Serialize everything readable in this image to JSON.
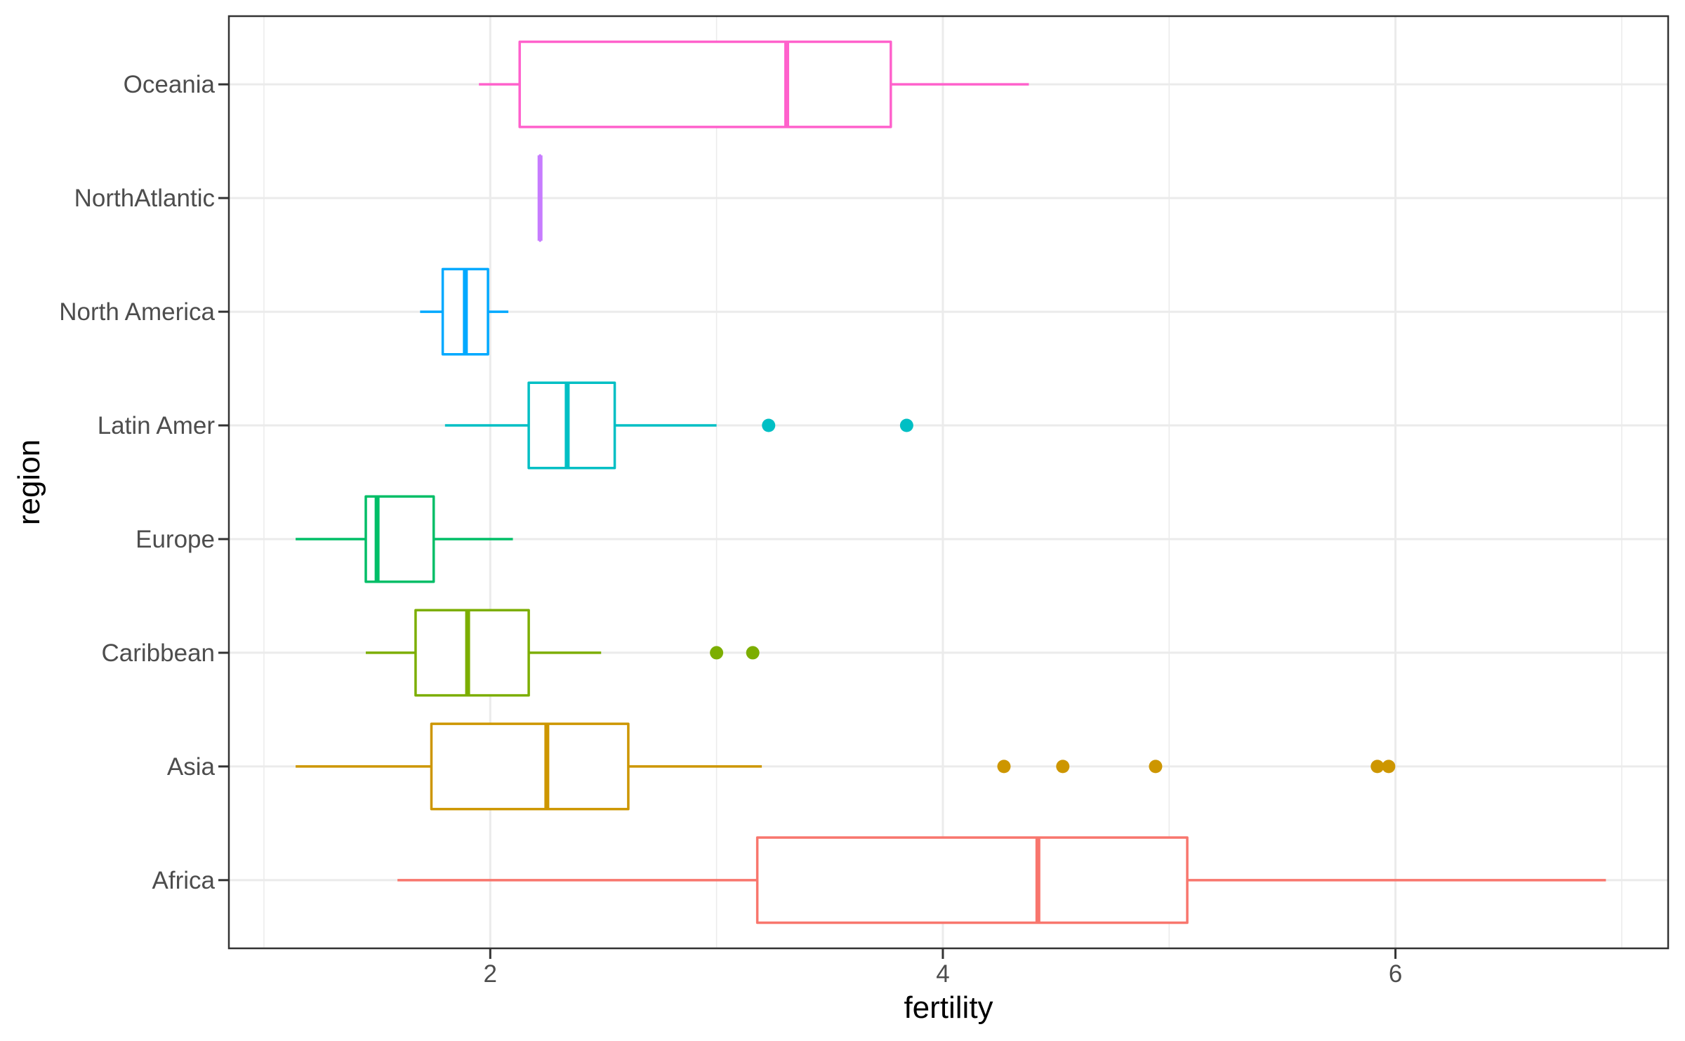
{
  "chart_data": {
    "type": "boxplot",
    "orientation": "horizontal",
    "title": "",
    "xlabel": "fertility",
    "ylabel": "region",
    "xlim": [
      0.845,
      7.205
    ],
    "x_ticks": [
      2,
      4,
      6
    ],
    "x_tick_labels": [
      "2",
      "4",
      "6"
    ],
    "x_minor_gridlines": [
      1,
      3,
      5,
      7
    ],
    "grid": true,
    "legend": "none",
    "theme": "bw",
    "categories": [
      "Africa",
      "Asia",
      "Caribbean",
      "Europe",
      "Latin Amer",
      "North America",
      "NorthAtlantic",
      "Oceania"
    ],
    "series": [
      {
        "name": "Africa",
        "color": "#F8766D",
        "whisker_low": 1.59,
        "q1": 3.18,
        "median": 4.42,
        "q3": 5.08,
        "whisker_high": 6.93,
        "outliers": []
      },
      {
        "name": "Asia",
        "color": "#CD9600",
        "whisker_low": 1.14,
        "q1": 1.74,
        "median": 2.25,
        "q3": 2.61,
        "whisker_high": 3.2,
        "outliers": [
          4.27,
          4.53,
          4.94,
          5.92,
          5.97
        ]
      },
      {
        "name": "Caribbean",
        "color": "#7CAE00",
        "whisker_low": 1.45,
        "q1": 1.67,
        "median": 1.9,
        "q3": 2.17,
        "whisker_high": 2.49,
        "outliers": [
          3.0,
          3.16
        ]
      },
      {
        "name": "Europe",
        "color": "#00BE67",
        "whisker_low": 1.14,
        "q1": 1.45,
        "median": 1.5,
        "q3": 1.75,
        "whisker_high": 2.1,
        "outliers": []
      },
      {
        "name": "Latin Amer",
        "color": "#00BFC4",
        "whisker_low": 1.8,
        "q1": 2.17,
        "median": 2.34,
        "q3": 2.55,
        "whisker_high": 3.0,
        "outliers": [
          3.23,
          3.84
        ]
      },
      {
        "name": "North America",
        "color": "#00A9FF",
        "whisker_low": 1.69,
        "q1": 1.79,
        "median": 1.89,
        "q3": 1.99,
        "whisker_high": 2.08,
        "outliers": []
      },
      {
        "name": "NorthAtlantic",
        "color": "#C77CFF",
        "whisker_low": 2.22,
        "q1": 2.22,
        "median": 2.22,
        "q3": 2.22,
        "whisker_high": 2.22,
        "outliers": []
      },
      {
        "name": "Oceania",
        "color": "#FF61CC",
        "whisker_low": 1.95,
        "q1": 2.13,
        "median": 3.31,
        "q3": 3.77,
        "whisker_high": 4.38,
        "outliers": []
      }
    ]
  }
}
